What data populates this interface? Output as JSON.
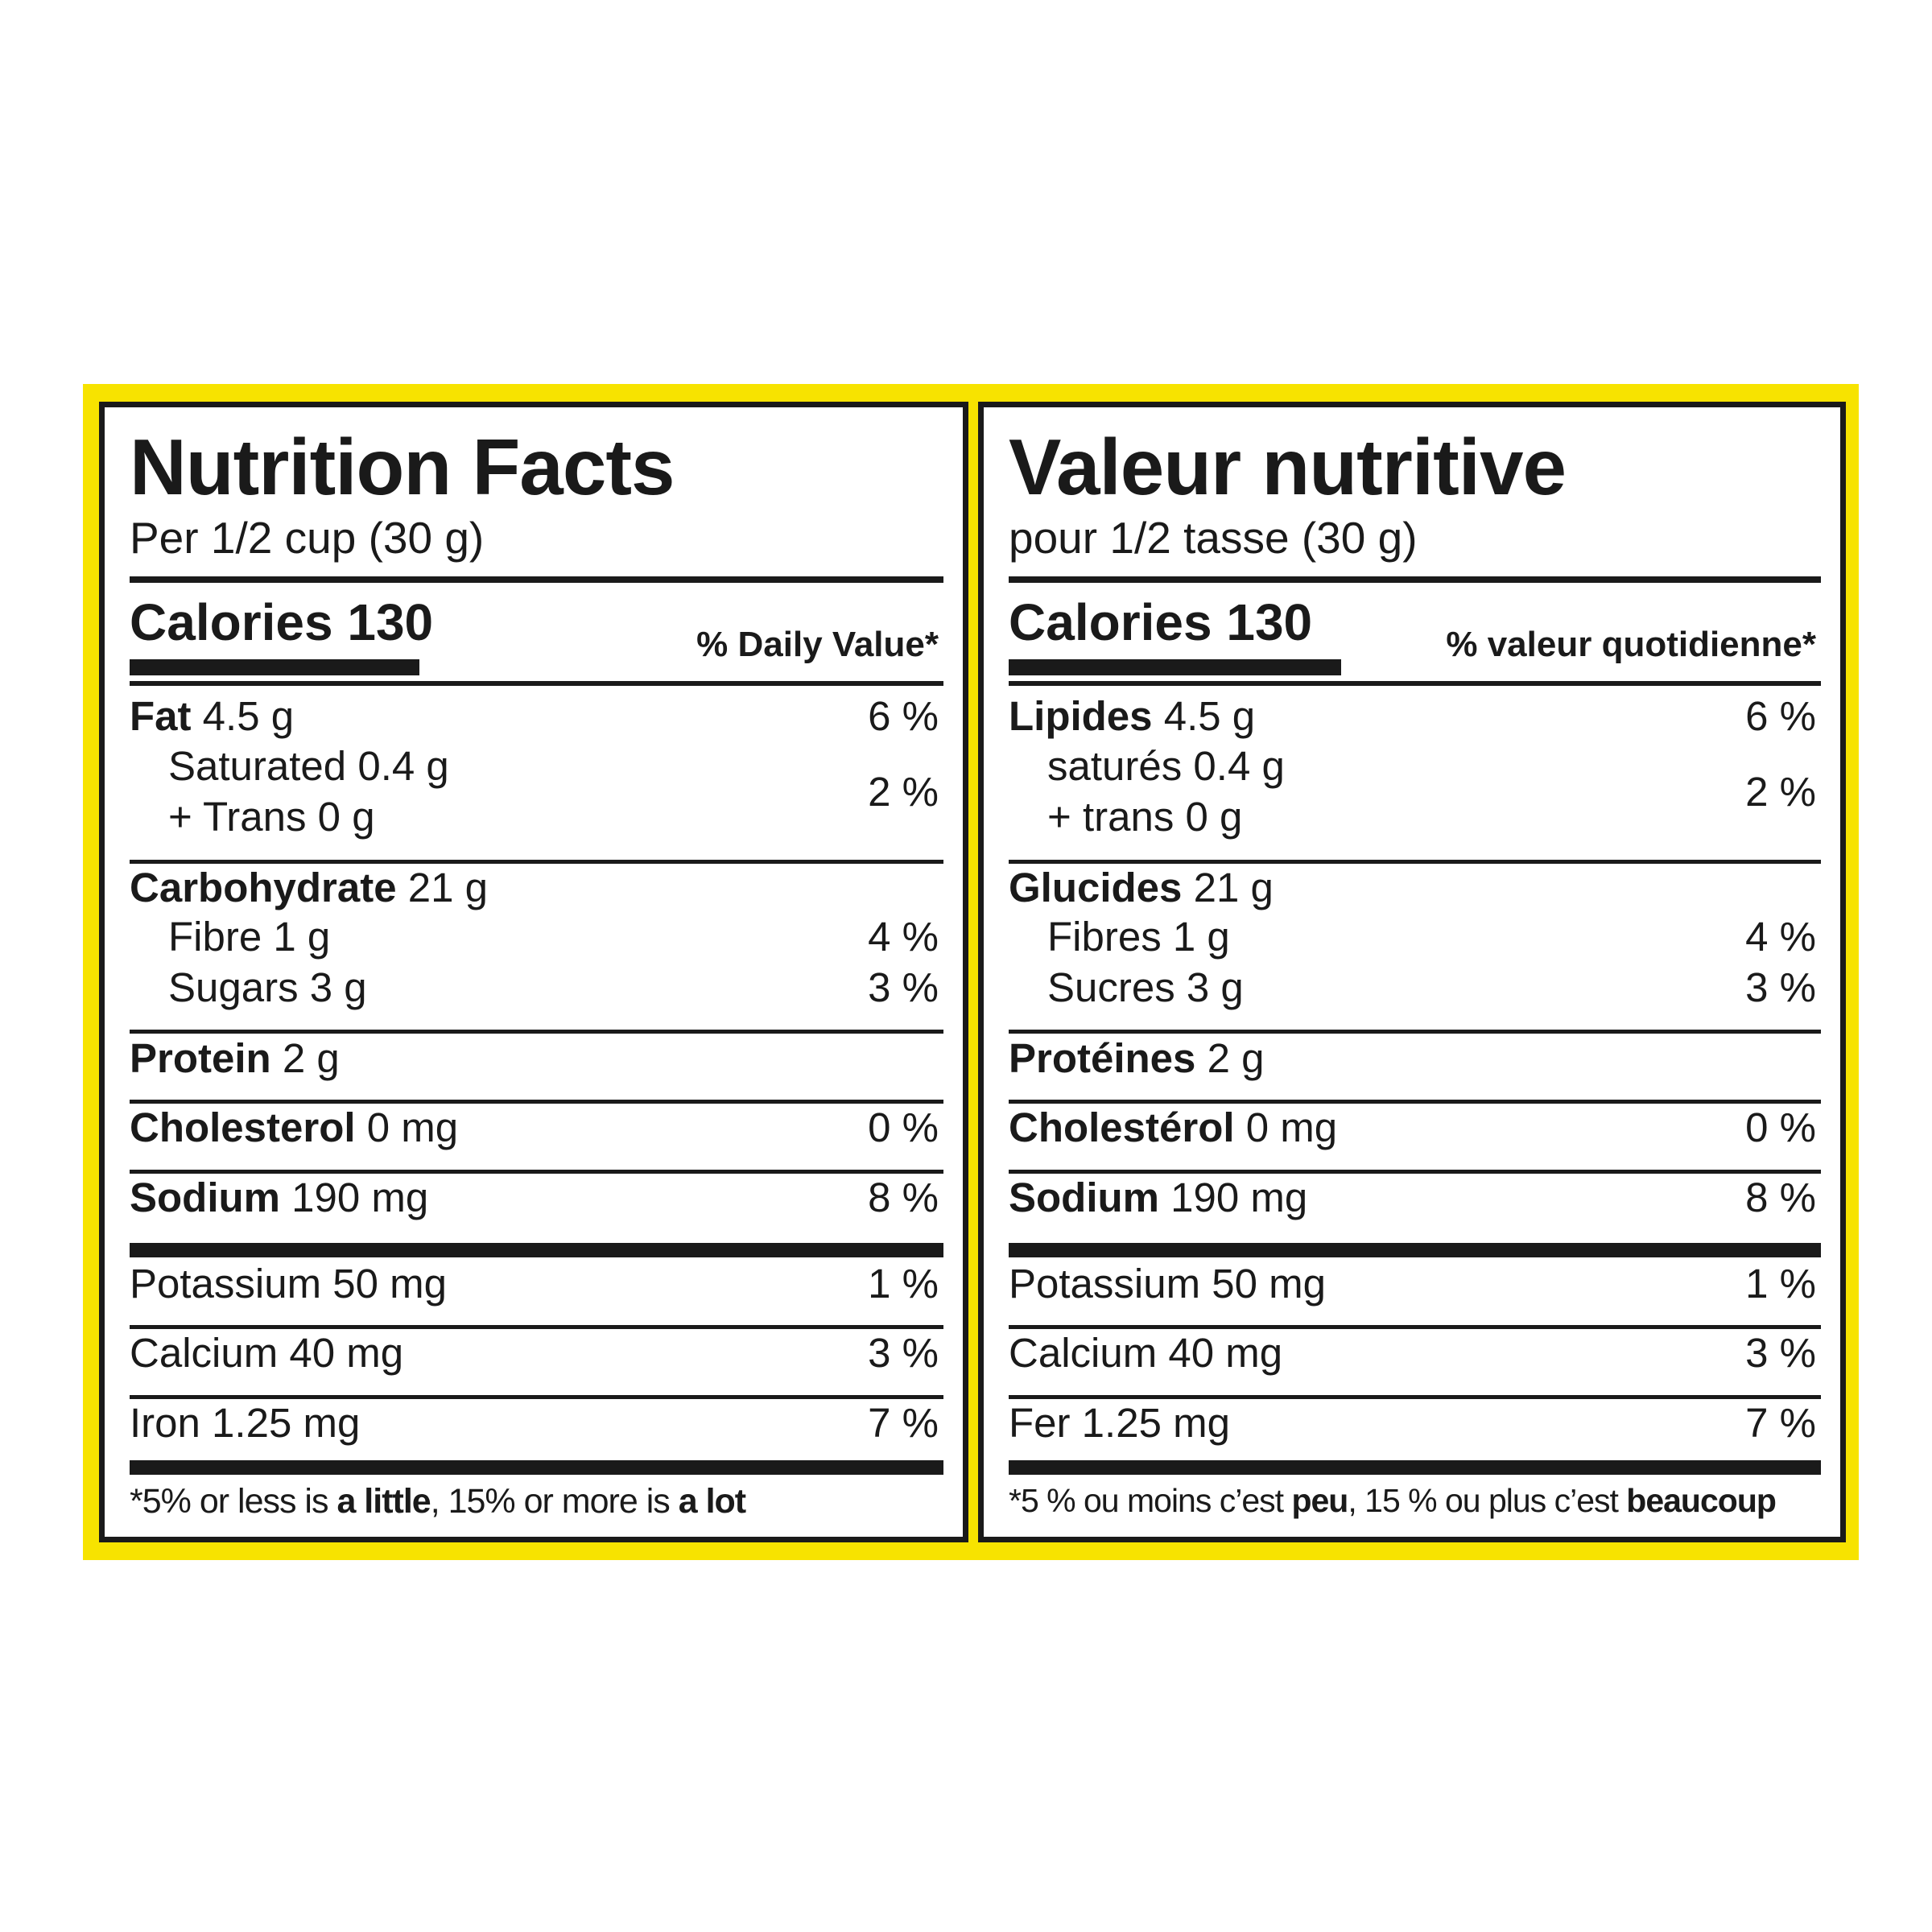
{
  "en": {
    "title": "Nutrition Facts",
    "serving": "Per 1/2 cup (30 g)",
    "calories": "Calories 130",
    "dv_header": "% Daily Value*",
    "fat_label": "Fat",
    "fat_value": " 4.5 g",
    "fat_pct": "6 %",
    "saturated": "Saturated 0.4 g",
    "trans": "+ Trans 0 g",
    "sat_trans_pct": "2 %",
    "carb_label": "Carbohydrate",
    "carb_value": " 21 g",
    "fibre": "Fibre 1 g",
    "fibre_pct": "4 %",
    "sugars": "Sugars 3 g",
    "sugars_pct": "3 %",
    "protein_label": "Protein",
    "protein_value": " 2 g",
    "chol_label": "Cholesterol",
    "chol_value": " 0 mg",
    "chol_pct": "0 %",
    "sodium_label": "Sodium",
    "sodium_value": " 190 mg",
    "sodium_pct": "8 %",
    "potassium": "Potassium 50 mg",
    "potassium_pct": "1 %",
    "calcium": "Calcium 40 mg",
    "calcium_pct": "3 %",
    "iron": "Iron 1.25 mg",
    "iron_pct": "7 %",
    "foot_1": "*5% or less is ",
    "foot_2": "a little",
    "foot_3": ", 15% or more is ",
    "foot_4": "a lot"
  },
  "fr": {
    "title": "Valeur nutritive",
    "serving": "pour 1/2 tasse (30 g)",
    "calories": "Calories 130",
    "dv_header": "% valeur quotidienne*",
    "fat_label": "Lipides",
    "fat_value": " 4.5 g",
    "fat_pct": "6 %",
    "saturated": "saturés 0.4 g",
    "trans": "+ trans 0 g",
    "sat_trans_pct": "2 %",
    "carb_label": "Glucides",
    "carb_value": " 21 g",
    "fibre": "Fibres 1 g",
    "fibre_pct": "4 %",
    "sugars": "Sucres 3 g",
    "sugars_pct": "3 %",
    "protein_label": "Protéines",
    "protein_value": " 2 g",
    "chol_label": "Cholestérol",
    "chol_value": " 0 mg",
    "chol_pct": "0 %",
    "sodium_label": "Sodium",
    "sodium_value": " 190 mg",
    "sodium_pct": "8 %",
    "potassium": "Potassium 50 mg",
    "potassium_pct": "1 %",
    "calcium": "Calcium 40 mg",
    "calcium_pct": "3 %",
    "iron": "Fer 1.25 mg",
    "iron_pct": "7 %",
    "foot_1": "*5 % ou moins c’est ",
    "foot_2": "peu",
    "foot_3": ", 15 % ou plus c’est ",
    "foot_4": "beaucoup"
  },
  "colors": {
    "frame": "#f7e300",
    "ink": "#1a1a1a",
    "panel": "#ffffff"
  }
}
